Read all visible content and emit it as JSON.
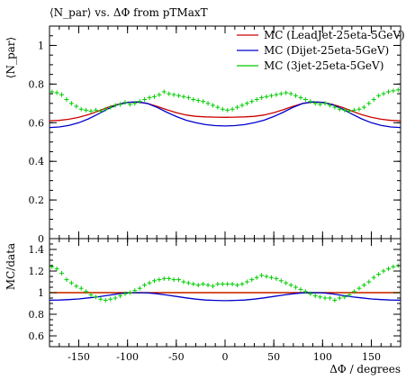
{
  "chart_data": [
    {
      "type": "scatter",
      "title": "⟨N_par⟩ vs. ΔΦ from pTMaxT",
      "ylabel": "⟨N_par⟩",
      "xlabel": "",
      "xlim": [
        -180,
        180
      ],
      "ylim": [
        0,
        1.1
      ],
      "xticks": [
        -150,
        -100,
        -50,
        0,
        50,
        100,
        150
      ],
      "yticks": [
        0,
        0.2,
        0.4,
        0.6,
        0.8,
        1
      ],
      "ytick_labels": [
        "0",
        "0.2",
        "0.4",
        "0.6",
        "0.8",
        "1"
      ],
      "legend_position": "top-right",
      "series": [
        {
          "name": "MC (LeadJet-25eta-5GeV)",
          "color": "#cc0000",
          "style": "steps",
          "x": [
            -180,
            -170,
            -160,
            -150,
            -140,
            -130,
            -120,
            -110,
            -100,
            -90,
            -80,
            -70,
            -60,
            -50,
            -40,
            -30,
            -20,
            -10,
            0,
            10,
            20,
            30,
            40,
            50,
            60,
            70,
            80,
            90,
            100,
            110,
            120,
            130,
            140,
            150,
            160,
            170,
            180
          ],
          "y": [
            0.61,
            0.612,
            0.618,
            0.628,
            0.642,
            0.66,
            0.68,
            0.695,
            0.705,
            0.707,
            0.7,
            0.685,
            0.668,
            0.652,
            0.64,
            0.633,
            0.63,
            0.629,
            0.628,
            0.629,
            0.63,
            0.633,
            0.64,
            0.652,
            0.668,
            0.685,
            0.7,
            0.707,
            0.705,
            0.695,
            0.68,
            0.66,
            0.642,
            0.628,
            0.618,
            0.612,
            0.61
          ]
        },
        {
          "name": "MC (Dijet-25eta-5GeV)",
          "color": "#0000cc",
          "style": "steps",
          "x": [
            -180,
            -170,
            -160,
            -150,
            -140,
            -130,
            -120,
            -110,
            -100,
            -90,
            -80,
            -70,
            -60,
            -50,
            -40,
            -30,
            -20,
            -10,
            0,
            10,
            20,
            30,
            40,
            50,
            60,
            70,
            80,
            90,
            100,
            110,
            120,
            130,
            140,
            150,
            160,
            170,
            180
          ],
          "y": [
            0.575,
            0.578,
            0.586,
            0.6,
            0.62,
            0.645,
            0.672,
            0.693,
            0.705,
            0.708,
            0.7,
            0.68,
            0.655,
            0.632,
            0.613,
            0.6,
            0.59,
            0.585,
            0.583,
            0.585,
            0.59,
            0.6,
            0.613,
            0.632,
            0.655,
            0.68,
            0.7,
            0.708,
            0.705,
            0.693,
            0.672,
            0.645,
            0.62,
            0.6,
            0.586,
            0.578,
            0.575
          ]
        },
        {
          "name": "MC (3jet-25eta-5GeV)",
          "color": "#00cc00",
          "style": "markers",
          "x": [
            -177.5,
            -172.5,
            -167.5,
            -162.5,
            -157.5,
            -152.5,
            -147.5,
            -142.5,
            -137.5,
            -132.5,
            -127.5,
            -122.5,
            -117.5,
            -112.5,
            -107.5,
            -102.5,
            -97.5,
            -92.5,
            -87.5,
            -82.5,
            -77.5,
            -72.5,
            -67.5,
            -62.5,
            -57.5,
            -52.5,
            -47.5,
            -42.5,
            -37.5,
            -32.5,
            -27.5,
            -22.5,
            -17.5,
            -12.5,
            -7.5,
            -2.5,
            2.5,
            7.5,
            12.5,
            17.5,
            22.5,
            27.5,
            32.5,
            37.5,
            42.5,
            47.5,
            52.5,
            57.5,
            62.5,
            67.5,
            72.5,
            77.5,
            82.5,
            87.5,
            92.5,
            97.5,
            102.5,
            107.5,
            112.5,
            117.5,
            122.5,
            127.5,
            132.5,
            137.5,
            142.5,
            147.5,
            152.5,
            157.5,
            162.5,
            167.5,
            172.5,
            177.5
          ],
          "y": [
            0.76,
            0.755,
            0.745,
            0.72,
            0.7,
            0.685,
            0.67,
            0.665,
            0.66,
            0.665,
            0.66,
            0.67,
            0.68,
            0.69,
            0.695,
            0.705,
            0.695,
            0.7,
            0.71,
            0.72,
            0.73,
            0.735,
            0.745,
            0.76,
            0.75,
            0.745,
            0.74,
            0.735,
            0.73,
            0.72,
            0.715,
            0.71,
            0.7,
            0.69,
            0.68,
            0.67,
            0.665,
            0.67,
            0.68,
            0.69,
            0.7,
            0.71,
            0.72,
            0.73,
            0.735,
            0.74,
            0.745,
            0.75,
            0.755,
            0.75,
            0.74,
            0.73,
            0.72,
            0.71,
            0.7,
            0.695,
            0.7,
            0.69,
            0.68,
            0.67,
            0.665,
            0.66,
            0.665,
            0.67,
            0.68,
            0.7,
            0.72,
            0.74,
            0.75,
            0.76,
            0.765,
            0.77
          ]
        }
      ]
    },
    {
      "type": "scatter",
      "ylabel": "MC/data",
      "xlabel": "ΔΦ / degrees",
      "xlim": [
        -180,
        180
      ],
      "ylim": [
        0.5,
        1.5
      ],
      "xticks": [
        -150,
        -100,
        -50,
        0,
        50,
        100,
        150
      ],
      "xtick_labels": [
        "-150",
        "-100",
        "-50",
        "0",
        "50",
        "100",
        "150"
      ],
      "yticks": [
        0.6,
        0.8,
        1,
        1.2,
        1.4
      ],
      "ytick_labels": [
        "0.6",
        "0.8",
        "1",
        "1.2",
        "1.4"
      ],
      "reference_line": 1,
      "series": [
        {
          "color": "#cc0000",
          "style": "steps",
          "x": [
            -180,
            -150,
            -120,
            -90,
            -60,
            -30,
            0,
            30,
            60,
            90,
            120,
            150,
            180
          ],
          "y": [
            1.0,
            1.0,
            1.0,
            1.0,
            1.0,
            1.0,
            1.0,
            1.0,
            1.0,
            1.0,
            1.0,
            1.0,
            1.0
          ]
        },
        {
          "color": "#0000cc",
          "style": "steps",
          "x": [
            -180,
            -170,
            -160,
            -150,
            -140,
            -130,
            -120,
            -110,
            -100,
            -90,
            -80,
            -70,
            -60,
            -50,
            -40,
            -30,
            -20,
            -10,
            0,
            10,
            20,
            30,
            40,
            50,
            60,
            70,
            80,
            90,
            100,
            110,
            120,
            130,
            140,
            150,
            160,
            170,
            180
          ],
          "y": [
            0.93,
            0.932,
            0.936,
            0.942,
            0.952,
            0.962,
            0.975,
            0.988,
            0.998,
            1.0,
            0.998,
            0.99,
            0.978,
            0.965,
            0.952,
            0.94,
            0.932,
            0.928,
            0.926,
            0.928,
            0.932,
            0.94,
            0.952,
            0.965,
            0.978,
            0.99,
            0.998,
            1.0,
            0.998,
            0.988,
            0.975,
            0.962,
            0.952,
            0.942,
            0.936,
            0.932,
            0.93
          ]
        },
        {
          "color": "#00cc00",
          "style": "markers",
          "x": [
            -177.5,
            -172.5,
            -167.5,
            -162.5,
            -157.5,
            -152.5,
            -147.5,
            -142.5,
            -137.5,
            -132.5,
            -127.5,
            -122.5,
            -117.5,
            -112.5,
            -107.5,
            -102.5,
            -97.5,
            -92.5,
            -87.5,
            -82.5,
            -77.5,
            -72.5,
            -67.5,
            -62.5,
            -57.5,
            -52.5,
            -47.5,
            -42.5,
            -37.5,
            -32.5,
            -27.5,
            -22.5,
            -17.5,
            -12.5,
            -7.5,
            -2.5,
            2.5,
            7.5,
            12.5,
            17.5,
            22.5,
            27.5,
            32.5,
            37.5,
            42.5,
            47.5,
            52.5,
            57.5,
            62.5,
            67.5,
            72.5,
            77.5,
            82.5,
            87.5,
            92.5,
            97.5,
            102.5,
            107.5,
            112.5,
            117.5,
            122.5,
            127.5,
            132.5,
            137.5,
            142.5,
            147.5,
            152.5,
            157.5,
            162.5,
            167.5,
            172.5,
            177.5
          ],
          "y": [
            1.24,
            1.22,
            1.18,
            1.12,
            1.09,
            1.06,
            1.04,
            1.01,
            0.98,
            0.96,
            0.94,
            0.93,
            0.94,
            0.95,
            0.97,
            0.99,
            1.0,
            1.02,
            1.04,
            1.07,
            1.09,
            1.11,
            1.12,
            1.13,
            1.13,
            1.12,
            1.12,
            1.1,
            1.09,
            1.08,
            1.07,
            1.08,
            1.07,
            1.06,
            1.08,
            1.08,
            1.08,
            1.08,
            1.07,
            1.08,
            1.1,
            1.12,
            1.14,
            1.16,
            1.15,
            1.14,
            1.13,
            1.11,
            1.09,
            1.07,
            1.05,
            1.03,
            1.01,
            0.99,
            0.97,
            0.96,
            0.95,
            0.95,
            0.93,
            0.95,
            0.96,
            0.98,
            1.01,
            1.04,
            1.07,
            1.1,
            1.14,
            1.17,
            1.2,
            1.22,
            1.24,
            1.25
          ]
        }
      ]
    }
  ]
}
